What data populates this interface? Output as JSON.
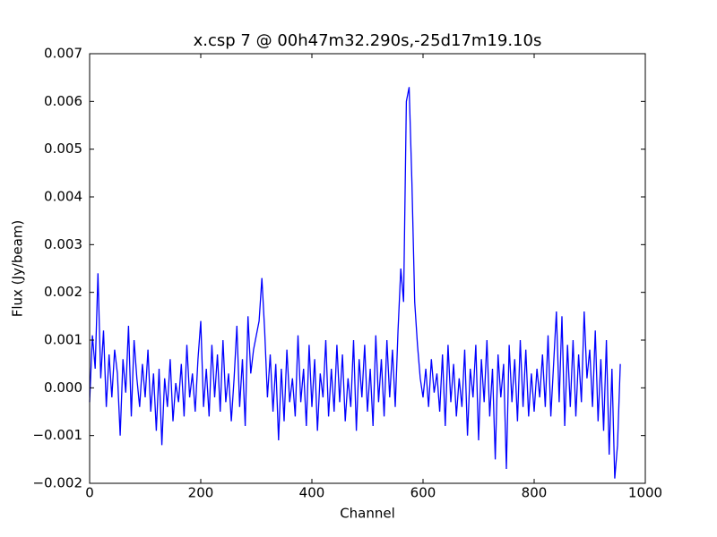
{
  "chart_data": {
    "type": "line",
    "title": "x.csp 7 @ 00h47m32.290s,-25d17m19.10s",
    "xlabel": "Channel",
    "ylabel": "Flux (Jy/beam)",
    "color": "#0000ff",
    "x": [
      0,
      5,
      10,
      15,
      20,
      25,
      30,
      35,
      40,
      45,
      50,
      55,
      60,
      65,
      70,
      75,
      80,
      85,
      90,
      95,
      100,
      105,
      110,
      115,
      120,
      125,
      130,
      135,
      140,
      145,
      150,
      155,
      160,
      165,
      170,
      175,
      180,
      185,
      190,
      195,
      200,
      205,
      210,
      215,
      220,
      225,
      230,
      235,
      240,
      245,
      250,
      255,
      260,
      265,
      270,
      275,
      280,
      285,
      290,
      295,
      300,
      305,
      310,
      315,
      320,
      325,
      330,
      335,
      340,
      345,
      350,
      355,
      360,
      365,
      370,
      375,
      380,
      385,
      390,
      395,
      400,
      405,
      410,
      415,
      420,
      425,
      430,
      435,
      440,
      445,
      450,
      455,
      460,
      465,
      470,
      475,
      480,
      485,
      490,
      495,
      500,
      505,
      510,
      515,
      520,
      525,
      530,
      535,
      540,
      545,
      550,
      555,
      560,
      565,
      570,
      575,
      580,
      585,
      590,
      595,
      600,
      605,
      610,
      615,
      620,
      625,
      630,
      635,
      640,
      645,
      650,
      655,
      660,
      665,
      670,
      675,
      680,
      685,
      690,
      695,
      700,
      705,
      710,
      715,
      720,
      725,
      730,
      735,
      740,
      745,
      750,
      755,
      760,
      765,
      770,
      775,
      780,
      785,
      790,
      795,
      800,
      805,
      810,
      815,
      820,
      825,
      830,
      835,
      840,
      845,
      850,
      855,
      860,
      865,
      870,
      875,
      880,
      885,
      890,
      895,
      900,
      905,
      910,
      915,
      920,
      925,
      930,
      935,
      940,
      945,
      950,
      955
    ],
    "values": [
      -0.0003,
      0.0011,
      0.0004,
      0.0024,
      0.0002,
      0.0012,
      -0.0004,
      0.0007,
      -0.0002,
      0.0008,
      0.0003,
      -0.001,
      0.0006,
      -0.0001,
      0.0013,
      -0.0006,
      0.001,
      0.0002,
      -0.0004,
      0.0005,
      -0.0002,
      0.0008,
      -0.0005,
      0.0003,
      -0.0009,
      0.0004,
      -0.0012,
      0.0002,
      -0.0004,
      0.0006,
      -0.0007,
      0.0001,
      -0.0003,
      0.0005,
      -0.0006,
      0.0009,
      -0.0002,
      0.0003,
      -0.0005,
      0.0006,
      0.0014,
      -0.0004,
      0.0004,
      -0.0006,
      0.0009,
      -0.0002,
      0.0007,
      -0.0005,
      0.001,
      -0.0003,
      0.0003,
      -0.0007,
      0.0002,
      0.0013,
      -0.0004,
      0.0006,
      -0.0008,
      0.0015,
      0.0003,
      0.0008,
      0.0011,
      0.0014,
      0.0023,
      0.0012,
      -0.0002,
      0.0007,
      -0.0005,
      0.0005,
      -0.0011,
      0.0004,
      -0.0007,
      0.0008,
      -0.0003,
      0.0002,
      -0.0006,
      0.0011,
      -0.0003,
      0.0004,
      -0.0008,
      0.0009,
      -0.0004,
      0.0006,
      -0.0009,
      0.0003,
      -0.0002,
      0.001,
      -0.0006,
      0.0004,
      -0.0005,
      0.0009,
      -0.0003,
      0.0007,
      -0.0007,
      0.0002,
      -0.0004,
      0.001,
      -0.0009,
      0.0006,
      -0.0002,
      0.0009,
      -0.0005,
      0.0004,
      -0.0008,
      0.0011,
      -0.0003,
      0.0006,
      -0.0006,
      0.001,
      -0.0002,
      0.0008,
      -0.0004,
      0.0012,
      0.0025,
      0.0018,
      0.006,
      0.0063,
      0.0043,
      0.0018,
      0.0009,
      0.0002,
      -0.0002,
      0.0004,
      -0.0004,
      0.0006,
      -0.0001,
      0.0003,
      -0.0005,
      0.0007,
      -0.0008,
      0.0009,
      -0.0003,
      0.0005,
      -0.0006,
      0.0002,
      -0.0004,
      0.0008,
      -0.001,
      0.0004,
      -0.0002,
      0.0009,
      -0.0011,
      0.0006,
      -0.0003,
      0.001,
      -0.0006,
      0.0004,
      -0.0015,
      0.0007,
      -0.0002,
      0.0005,
      -0.0017,
      0.0009,
      -0.0003,
      0.0006,
      -0.0007,
      0.001,
      -0.0004,
      0.0008,
      -0.0006,
      0.0003,
      -0.0005,
      0.0004,
      -0.0002,
      0.0007,
      -0.0004,
      0.0011,
      -0.0006,
      0.0005,
      0.0016,
      -0.0003,
      0.0015,
      -0.0008,
      0.0009,
      -0.0004,
      0.001,
      -0.0006,
      0.0007,
      -0.0003,
      0.0016,
      0.0002,
      0.0008,
      -0.0004,
      0.0012,
      -0.0007,
      0.0006,
      -0.0009,
      0.001,
      -0.0014,
      0.0004,
      -0.0019,
      -0.0012,
      0.0005
    ],
    "xlim": [
      0,
      1000
    ],
    "xticks": [
      0,
      200,
      400,
      600,
      800,
      1000
    ],
    "ylim": [
      -0.002,
      0.007
    ],
    "yticks": [
      {
        "value": -0.002,
        "label": "−0.002"
      },
      {
        "value": -0.001,
        "label": "−0.001"
      },
      {
        "value": 0,
        "label": "0.000"
      },
      0.001,
      0.002,
      0.003,
      0.004,
      0.005,
      0.006,
      0.007
    ],
    "grid": false
  }
}
